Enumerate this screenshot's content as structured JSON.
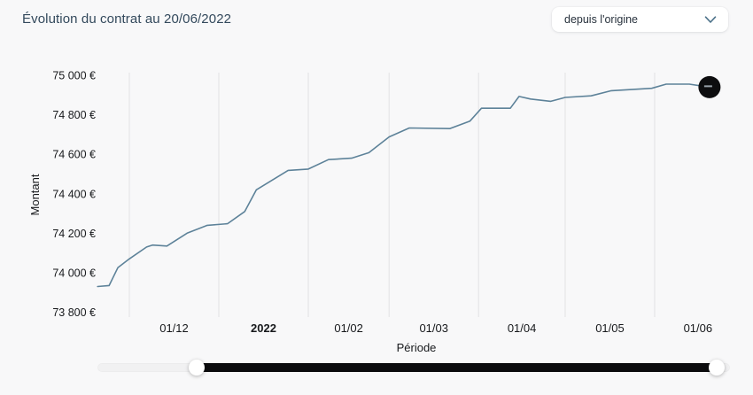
{
  "header": {
    "title": "Évolution du contrat au 20/06/2022",
    "period_select": {
      "value": "depuis l'origine"
    }
  },
  "chart_data": {
    "type": "line",
    "title": "Évolution du contrat au 20/06/2022",
    "xlabel": "Période",
    "ylabel": "Montant",
    "ylim": [
      73800,
      75000
    ],
    "x_range": [
      "20/11/2021",
      "20/06/2022"
    ],
    "grid": "vertical lines at month boundaries only",
    "legend": "none",
    "line_color": "#5d8299",
    "grid_color": "#e7e7e9",
    "axis_text_color": "#17191c",
    "y_ticks": [
      {
        "value": 75000,
        "label": "75 000 €"
      },
      {
        "value": 74800,
        "label": "74 800 €"
      },
      {
        "value": 74600,
        "label": "74 600 €"
      },
      {
        "value": 74400,
        "label": "74 400 €"
      },
      {
        "value": 74200,
        "label": "74 200 €"
      },
      {
        "value": 74000,
        "label": "74 000 €"
      },
      {
        "value": 73800,
        "label": "73 800 €"
      }
    ],
    "x_ticks": [
      {
        "label": "01/12",
        "bold": false
      },
      {
        "label": "2022",
        "bold": true
      },
      {
        "label": "01/02",
        "bold": false
      },
      {
        "label": "01/03",
        "bold": false
      },
      {
        "label": "01/04",
        "bold": false
      },
      {
        "label": "01/05",
        "bold": false
      },
      {
        "label": "01/06",
        "bold": false
      }
    ],
    "series": [
      {
        "name": "Montant (€)",
        "points": [
          {
            "d": "20/11",
            "v": 73930
          },
          {
            "d": "24/11",
            "v": 73935
          },
          {
            "d": "27/11",
            "v": 74025
          },
          {
            "d": "01/12",
            "v": 74070
          },
          {
            "d": "07/12",
            "v": 74130
          },
          {
            "d": "09/12",
            "v": 74140
          },
          {
            "d": "14/12",
            "v": 74135
          },
          {
            "d": "21/12",
            "v": 74200
          },
          {
            "d": "28/12",
            "v": 74240
          },
          {
            "d": "04/01",
            "v": 74248
          },
          {
            "d": "10/01",
            "v": 74310
          },
          {
            "d": "14/01",
            "v": 74420
          },
          {
            "d": "25/01",
            "v": 74518
          },
          {
            "d": "01/02",
            "v": 74525
          },
          {
            "d": "08/02",
            "v": 74573
          },
          {
            "d": "16/02",
            "v": 74580
          },
          {
            "d": "22/02",
            "v": 74608
          },
          {
            "d": "01/03",
            "v": 74688
          },
          {
            "d": "08/03",
            "v": 74733
          },
          {
            "d": "22/03",
            "v": 74730
          },
          {
            "d": "29/03",
            "v": 74768
          },
          {
            "d": "02/04",
            "v": 74833
          },
          {
            "d": "12/04",
            "v": 74833
          },
          {
            "d": "15/04",
            "v": 74893
          },
          {
            "d": "19/04",
            "v": 74880
          },
          {
            "d": "26/04",
            "v": 74868
          },
          {
            "d": "01/05",
            "v": 74888
          },
          {
            "d": "10/05",
            "v": 74896
          },
          {
            "d": "17/05",
            "v": 74922
          },
          {
            "d": "31/05",
            "v": 74934
          },
          {
            "d": "05/06",
            "v": 74955
          },
          {
            "d": "13/06",
            "v": 74955
          },
          {
            "d": "20/06",
            "v": 74940
          }
        ]
      }
    ],
    "end_marker": {
      "date": "20/06",
      "value": 74940,
      "style": "black circle with minus dash"
    }
  },
  "slider": {
    "range_start_pct": 15.7,
    "range_end_pct": 98.4
  }
}
